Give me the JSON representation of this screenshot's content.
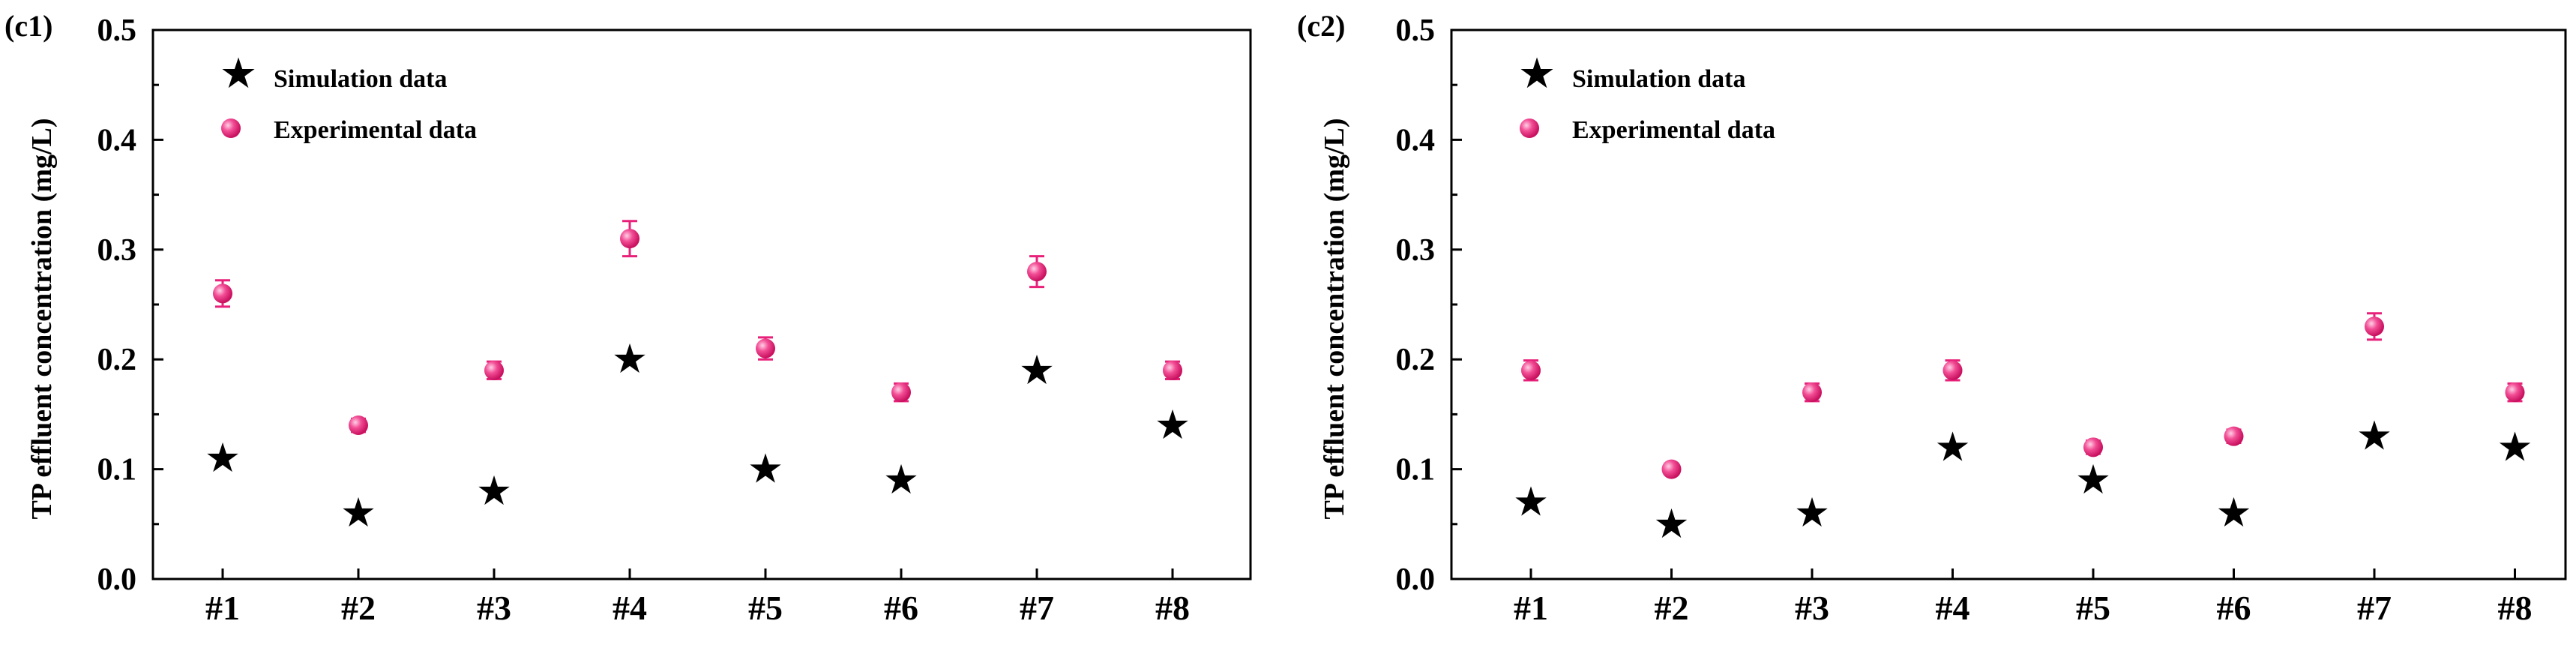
{
  "colors": {
    "simulation": "#000000",
    "experimental": "#e8207a",
    "axis": "#000000",
    "background": "#ffffff"
  },
  "chart_data": [
    {
      "panel_label": "(c1)",
      "type": "scatter",
      "ylabel": "TP effluent concentration (mg/L)",
      "xlabel": "",
      "categories": [
        "#1",
        "#2",
        "#3",
        "#4",
        "#5",
        "#6",
        "#7",
        "#8"
      ],
      "ylim": [
        0,
        0.5
      ],
      "yticks": [
        "0.0",
        "0.1",
        "0.2",
        "0.3",
        "0.4",
        "0.5"
      ],
      "grid": false,
      "legend_position": "top-left",
      "series": [
        {
          "name": "Simulation data",
          "marker": "star-icon",
          "values": [
            0.11,
            0.06,
            0.08,
            0.2,
            0.1,
            0.09,
            0.19,
            0.14
          ]
        },
        {
          "name": "Experimental data",
          "marker": "sphere-icon",
          "values": [
            0.26,
            0.14,
            0.19,
            0.31,
            0.21,
            0.17,
            0.28,
            0.19
          ],
          "errors": [
            0.012,
            0.006,
            0.008,
            0.016,
            0.01,
            0.008,
            0.014,
            0.008
          ]
        }
      ]
    },
    {
      "panel_label": "(c2)",
      "type": "scatter",
      "ylabel": "TP effluent concentration (mg/L)",
      "xlabel": "",
      "categories": [
        "#1",
        "#2",
        "#3",
        "#4",
        "#5",
        "#6",
        "#7",
        "#8"
      ],
      "ylim": [
        0,
        0.5
      ],
      "yticks": [
        "0.0",
        "0.1",
        "0.2",
        "0.3",
        "0.4",
        "0.5"
      ],
      "grid": false,
      "legend_position": "top-left",
      "series": [
        {
          "name": "Simulation data",
          "marker": "star-icon",
          "values": [
            0.07,
            0.05,
            0.06,
            0.12,
            0.09,
            0.06,
            0.13,
            0.12
          ]
        },
        {
          "name": "Experimental data",
          "marker": "sphere-icon",
          "values": [
            0.19,
            0.1,
            0.17,
            0.19,
            0.12,
            0.13,
            0.23,
            0.17
          ],
          "errors": [
            0.009,
            0.005,
            0.008,
            0.009,
            0.006,
            0.006,
            0.012,
            0.008
          ]
        }
      ]
    }
  ]
}
